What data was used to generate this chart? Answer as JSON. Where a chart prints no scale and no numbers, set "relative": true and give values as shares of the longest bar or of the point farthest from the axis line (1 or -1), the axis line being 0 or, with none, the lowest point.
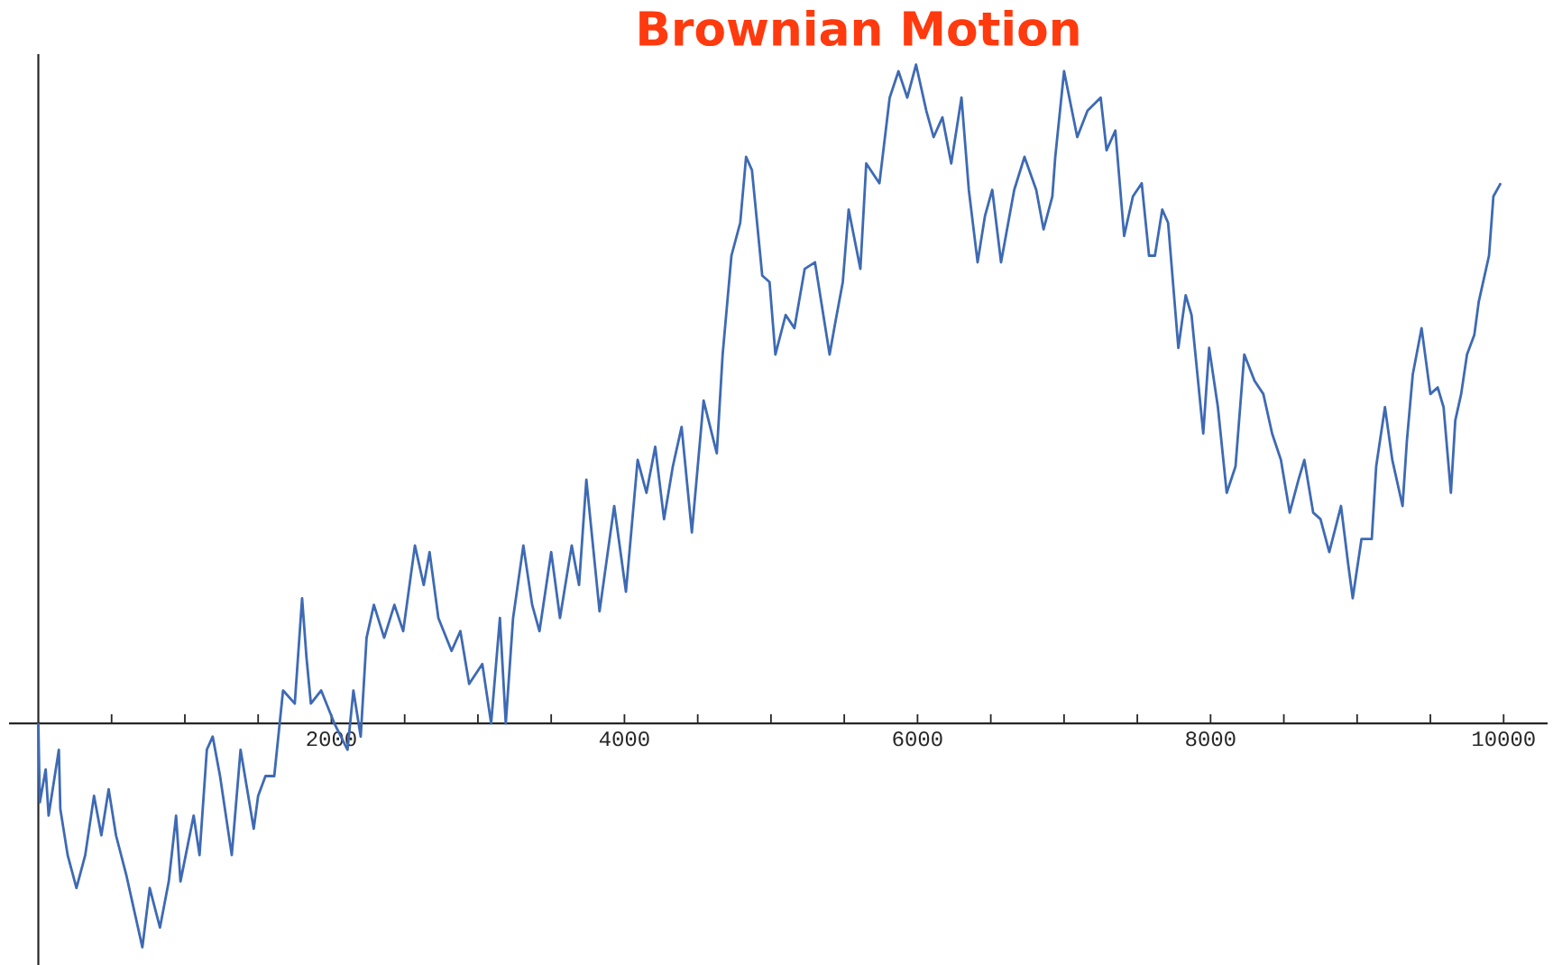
{
  "chart_data": {
    "type": "line",
    "title": "Brownian Motion",
    "relative": true,
    "color": "#3e6ab4",
    "xlim": [
      -200,
      10300
    ],
    "xticks": [
      {
        "value": 500,
        "label": null
      },
      {
        "value": 1000,
        "label": null
      },
      {
        "value": 1500,
        "label": null
      },
      2000,
      {
        "value": 2500,
        "label": null
      },
      {
        "value": 3000,
        "label": null
      },
      {
        "value": 3500,
        "label": null
      },
      4000,
      {
        "value": 4500,
        "label": null
      },
      {
        "value": 5000,
        "label": null
      },
      {
        "value": 5500,
        "label": null
      },
      6000,
      {
        "value": 6500,
        "label": null
      },
      {
        "value": 7000,
        "label": null
      },
      {
        "value": 7500,
        "label": null
      },
      8000,
      {
        "value": 8500,
        "label": null
      },
      {
        "value": 9000,
        "label": null
      },
      {
        "value": 9500,
        "label": null
      },
      10000
    ],
    "x": [
      0,
      10,
      50,
      70,
      140,
      150,
      200,
      260,
      320,
      380,
      430,
      480,
      530,
      600,
      650,
      710,
      760,
      830,
      890,
      940,
      970,
      1060,
      1100,
      1150,
      1190,
      1240,
      1320,
      1380,
      1470,
      1500,
      1550,
      1610,
      1670,
      1750,
      1800,
      1830,
      1860,
      1930,
      2020,
      2110,
      2150,
      2200,
      2240,
      2290,
      2360,
      2430,
      2490,
      2570,
      2630,
      2670,
      2730,
      2820,
      2880,
      2940,
      3030,
      3090,
      3150,
      3190,
      3240,
      3310,
      3370,
      3420,
      3500,
      3560,
      3640,
      3690,
      3740,
      3830,
      3930,
      4010,
      4090,
      4150,
      4210,
      4270,
      4330,
      4390,
      4460,
      4540,
      4630,
      4670,
      4730,
      4790,
      4830,
      4870,
      4940,
      4990,
      5030,
      5100,
      5160,
      5230,
      5300,
      5400,
      5440,
      5490,
      5530,
      5610,
      5650,
      5740,
      5810,
      5870,
      5930,
      5990,
      6060,
      6110,
      6170,
      6230,
      6300,
      6350,
      6410,
      6460,
      6510,
      6570,
      6660,
      6730,
      6810,
      6860,
      6920,
      6940,
      7000,
      7090,
      7160,
      7250,
      7290,
      7350,
      7410,
      7470,
      7530,
      7580,
      7620,
      7670,
      7710,
      7780,
      7830,
      7870,
      7950,
      7990,
      8050,
      8110,
      8170,
      8230,
      8300,
      8360,
      8420,
      8480,
      8540,
      8600,
      8640,
      8700,
      8750,
      8810,
      8890,
      8940,
      8970,
      9030,
      9100,
      9130,
      9190,
      9240,
      9310,
      9340,
      9380,
      9440,
      9500,
      9550,
      9590,
      9640,
      9670,
      9710,
      9750,
      9800,
      9830,
      9900,
      9930,
      9980
    ],
    "values": [
      0,
      -0.12,
      -0.07,
      -0.14,
      -0.04,
      -0.13,
      -0.2,
      -0.25,
      -0.2,
      -0.11,
      -0.17,
      -0.1,
      -0.17,
      -0.23,
      -0.28,
      -0.34,
      -0.25,
      -0.31,
      -0.24,
      -0.14,
      -0.24,
      -0.14,
      -0.2,
      -0.04,
      -0.02,
      -0.08,
      -0.2,
      -0.04,
      -0.16,
      -0.11,
      -0.08,
      -0.08,
      0.05,
      0.03,
      0.19,
      0.1,
      0.03,
      0.05,
      0,
      -0.04,
      0.05,
      -0.02,
      0.13,
      0.18,
      0.13,
      0.18,
      0.14,
      0.27,
      0.21,
      0.26,
      0.16,
      0.11,
      0.14,
      0.06,
      0.09,
      0,
      0.16,
      0,
      0.16,
      0.27,
      0.18,
      0.14,
      0.26,
      0.16,
      0.27,
      0.21,
      0.37,
      0.17,
      0.33,
      0.2,
      0.4,
      0.35,
      0.42,
      0.31,
      0.39,
      0.45,
      0.29,
      0.49,
      0.41,
      0.56,
      0.71,
      0.76,
      0.86,
      0.84,
      0.68,
      0.67,
      0.56,
      0.62,
      0.6,
      0.69,
      0.7,
      0.56,
      0.61,
      0.67,
      0.78,
      0.69,
      0.85,
      0.82,
      0.95,
      0.99,
      0.95,
      1,
      0.93,
      0.89,
      0.92,
      0.85,
      0.95,
      0.81,
      0.7,
      0.77,
      0.81,
      0.7,
      0.81,
      0.86,
      0.81,
      0.75,
      0.8,
      0.86,
      0.99,
      0.89,
      0.93,
      0.95,
      0.87,
      0.9,
      0.74,
      0.8,
      0.82,
      0.71,
      0.71,
      0.78,
      0.76,
      0.57,
      0.65,
      0.62,
      0.44,
      0.57,
      0.48,
      0.35,
      0.39,
      0.56,
      0.52,
      0.5,
      0.44,
      0.4,
      0.32,
      0.37,
      0.4,
      0.32,
      0.31,
      0.26,
      0.33,
      0.24,
      0.19,
      0.28,
      0.28,
      0.39,
      0.48,
      0.4,
      0.33,
      0.43,
      0.53,
      0.6,
      0.5,
      0.51,
      0.48,
      0.35,
      0.46,
      0.5,
      0.56,
      0.59,
      0.64,
      0.71,
      0.8,
      0.82
    ]
  }
}
